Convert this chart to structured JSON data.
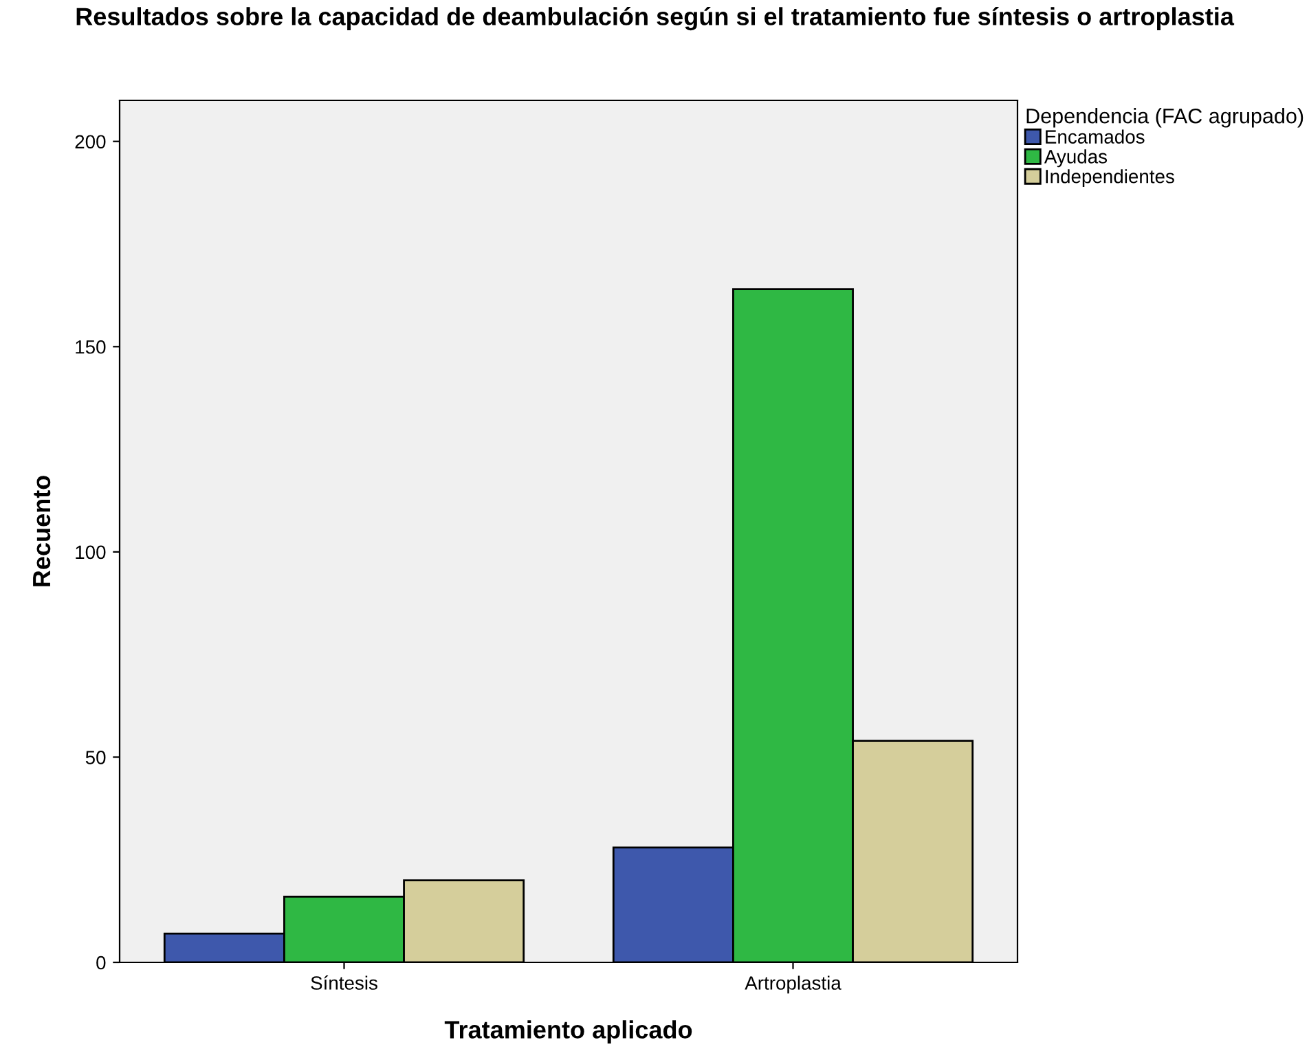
{
  "chart_data": {
    "type": "bar",
    "title": "Resultados sobre la capacidad de deambulación según si el tratamiento fue síntesis o artroplastia",
    "xlabel": "Tratamiento aplicado",
    "ylabel": "Recuento",
    "legend_title": "Dependencia (FAC agrupado)",
    "categories": [
      "Síntesis",
      "Artroplastia"
    ],
    "series": [
      {
        "name": "Encamados",
        "color": "#3e58ac",
        "values": [
          7,
          28
        ]
      },
      {
        "name": "Ayudas",
        "color": "#2fb844",
        "values": [
          16,
          164
        ]
      },
      {
        "name": "Independientes",
        "color": "#d5ce9b",
        "values": [
          20,
          54
        ]
      }
    ],
    "ylim": [
      0,
      210
    ],
    "yticks": [
      0,
      50,
      100,
      150,
      200
    ],
    "grid": false,
    "legend": "top right"
  }
}
